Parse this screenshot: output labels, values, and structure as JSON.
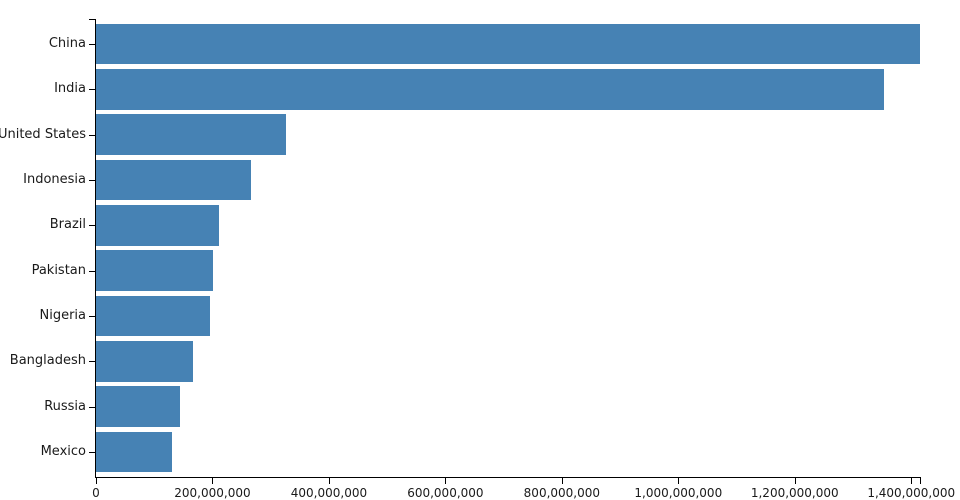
{
  "chart_data": {
    "type": "bar",
    "orientation": "horizontal",
    "title": "",
    "xlabel": "",
    "ylabel": "",
    "categories": [
      "China",
      "India",
      "United States",
      "Indonesia",
      "Brazil",
      "Pakistan",
      "Nigeria",
      "Bangladesh",
      "Russia",
      "Mexico"
    ],
    "values": [
      1415045928,
      1354051854,
      326766748,
      266794980,
      210867954,
      200813818,
      195875237,
      166368149,
      143964709,
      130759074
    ],
    "xlim": [
      0,
      1415045928
    ],
    "x_ticks": [
      0,
      200000000,
      400000000,
      600000000,
      800000000,
      1000000000,
      1200000000,
      1400000000
    ],
    "x_tick_labels": [
      "0",
      "200,000,000",
      "400,000,000",
      "600,000,000",
      "800,000,000",
      "1,000,000,000",
      "1,200,000,000",
      "1,400,000,000"
    ],
    "grid": false,
    "legend": false,
    "band_padding": 0.1,
    "bar_color": "#4682b4",
    "axis_color": "#000000",
    "label_color": "#1a1a1a"
  }
}
